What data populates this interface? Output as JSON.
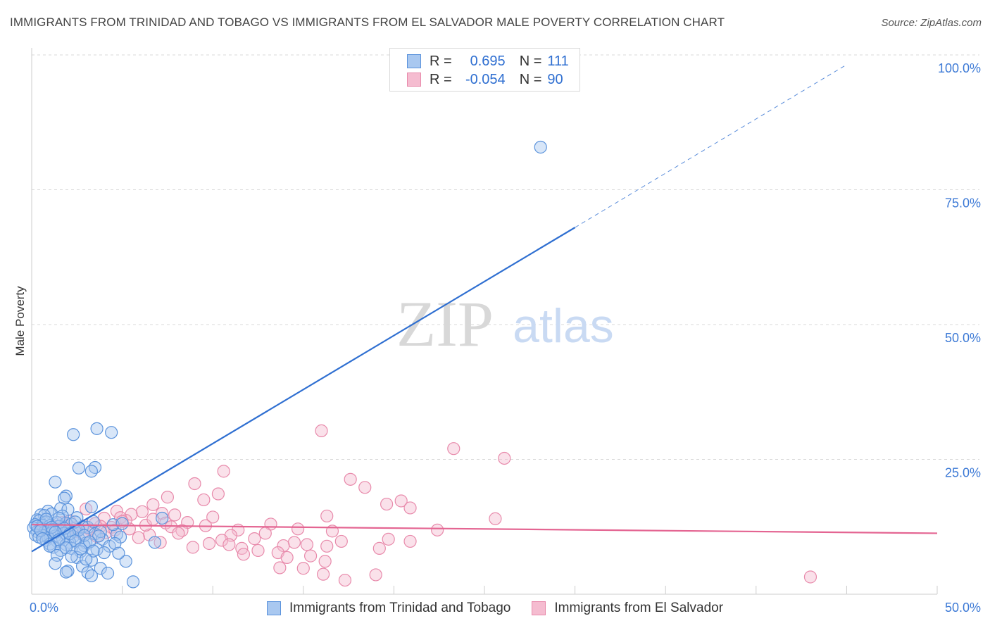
{
  "header": {
    "title": "IMMIGRANTS FROM TRINIDAD AND TOBAGO VS IMMIGRANTS FROM EL SALVADOR MALE POVERTY CORRELATION CHART",
    "source": "Source: ZipAtlas.com"
  },
  "watermark": {
    "zip": "ZIP",
    "atlas": "atlas"
  },
  "legend": {
    "r_label": "R =",
    "n_label": "N =",
    "series1": {
      "r": "0.695",
      "n": "111"
    },
    "series2": {
      "r": "-0.054",
      "n": "90"
    }
  },
  "colors": {
    "series1_fill": "#a9c8f0",
    "series1_stroke": "#5b93dc",
    "series1_line": "#2f6fd1",
    "series2_fill": "#f5bcd0",
    "series2_stroke": "#e88aab",
    "series2_line": "#e46592",
    "tick_label": "#3d7ad6",
    "grid": "#d9d9d9"
  },
  "chart_data": {
    "type": "scatter",
    "title": "IMMIGRANTS FROM TRINIDAD AND TOBAGO VS IMMIGRANTS FROM EL SALVADOR MALE POVERTY CORRELATION CHART",
    "xlabel": "",
    "ylabel": "Male Poverty",
    "xlim": [
      0,
      50
    ],
    "ylim": [
      0,
      100
    ],
    "x_tick_labels": [
      "0.0%",
      "50.0%"
    ],
    "y_ticks": [
      25,
      50,
      75,
      100
    ],
    "y_tick_labels": [
      "25.0%",
      "50.0%",
      "75.0%",
      "100.0%"
    ],
    "series": [
      {
        "name": "Immigrants from Trinidad and Tobago",
        "r": 0.695,
        "n": 111,
        "trend": {
          "x0": 0,
          "y0": 7.9,
          "x1": 30,
          "y1": 68.0,
          "dashed_to_x": 45,
          "dashed_to_y": 98.2
        },
        "points": [
          [
            28.1,
            82.9
          ],
          [
            3.6,
            30.7
          ],
          [
            4.4,
            30.0
          ],
          [
            2.3,
            29.6
          ],
          [
            2.6,
            23.4
          ],
          [
            3.5,
            23.5
          ],
          [
            3.3,
            22.8
          ],
          [
            1.3,
            20.8
          ],
          [
            1.9,
            18.2
          ],
          [
            1.8,
            17.8
          ],
          [
            3.3,
            16.2
          ],
          [
            1.6,
            15.9
          ],
          [
            2.0,
            15.7
          ],
          [
            0.9,
            15.4
          ],
          [
            1.1,
            14.9
          ],
          [
            0.5,
            14.7
          ],
          [
            0.7,
            14.6
          ],
          [
            1.7,
            14.5
          ],
          [
            2.5,
            14.2
          ],
          [
            7.2,
            14.1
          ],
          [
            0.3,
            13.8
          ],
          [
            0.4,
            13.6
          ],
          [
            0.8,
            13.4
          ],
          [
            1.4,
            13.3
          ],
          [
            1.9,
            13.2
          ],
          [
            2.2,
            13.0
          ],
          [
            0.2,
            12.9
          ],
          [
            0.6,
            12.8
          ],
          [
            1.0,
            12.7
          ],
          [
            1.5,
            12.6
          ],
          [
            2.8,
            12.5
          ],
          [
            3.1,
            12.4
          ],
          [
            0.1,
            12.3
          ],
          [
            0.5,
            12.2
          ],
          [
            0.9,
            12.1
          ],
          [
            1.2,
            12.0
          ],
          [
            1.6,
            11.9
          ],
          [
            2.0,
            11.8
          ],
          [
            2.4,
            11.7
          ],
          [
            0.3,
            11.6
          ],
          [
            0.7,
            11.5
          ],
          [
            1.1,
            11.4
          ],
          [
            1.8,
            11.3
          ],
          [
            3.5,
            11.2
          ],
          [
            4.7,
            11.1
          ],
          [
            0.2,
            11.0
          ],
          [
            0.6,
            10.9
          ],
          [
            1.3,
            10.8
          ],
          [
            2.3,
            10.7
          ],
          [
            0.4,
            10.6
          ],
          [
            0.9,
            10.5
          ],
          [
            1.7,
            10.4
          ],
          [
            2.6,
            10.3
          ],
          [
            3.9,
            10.2
          ],
          [
            0.8,
            10.0
          ],
          [
            1.4,
            9.8
          ],
          [
            2.1,
            9.6
          ],
          [
            3.0,
            9.5
          ],
          [
            1.0,
            9.3
          ],
          [
            1.9,
            9.2
          ],
          [
            2.9,
            9.0
          ],
          [
            4.3,
            8.9
          ],
          [
            1.2,
            8.7
          ],
          [
            2.2,
            8.5
          ],
          [
            3.6,
            8.3
          ],
          [
            1.6,
            8.1
          ],
          [
            2.7,
            7.9
          ],
          [
            4.0,
            7.7
          ],
          [
            1.4,
            7.2
          ],
          [
            2.5,
            6.8
          ],
          [
            3.3,
            6.3
          ],
          [
            5.2,
            6.1
          ],
          [
            1.3,
            5.7
          ],
          [
            2.8,
            5.2
          ],
          [
            3.8,
            4.8
          ],
          [
            2.0,
            4.3
          ],
          [
            3.1,
            4.0
          ],
          [
            4.2,
            3.9
          ],
          [
            3.3,
            3.4
          ],
          [
            5.6,
            2.3
          ],
          [
            1.9,
            4.1
          ],
          [
            0.8,
            13.9
          ],
          [
            1.5,
            14.1
          ],
          [
            2.4,
            13.4
          ],
          [
            3.4,
            13.5
          ],
          [
            4.5,
            12.9
          ],
          [
            5.0,
            13.1
          ],
          [
            0.3,
            12.6
          ],
          [
            1.1,
            12.4
          ],
          [
            1.8,
            12.2
          ],
          [
            2.6,
            11.9
          ],
          [
            3.8,
            11.6
          ],
          [
            0.5,
            11.8
          ],
          [
            1.3,
            11.5
          ],
          [
            2.1,
            11.2
          ],
          [
            2.9,
            10.9
          ],
          [
            3.7,
            10.8
          ],
          [
            4.9,
            10.6
          ],
          [
            0.6,
            10.3
          ],
          [
            1.5,
            10.1
          ],
          [
            2.4,
            9.9
          ],
          [
            3.2,
            9.7
          ],
          [
            4.6,
            9.4
          ],
          [
            1.0,
            8.9
          ],
          [
            1.9,
            8.6
          ],
          [
            2.7,
            8.4
          ],
          [
            3.4,
            8.0
          ],
          [
            4.8,
            7.6
          ],
          [
            2.2,
            7.0
          ],
          [
            3.0,
            6.5
          ],
          [
            6.8,
            9.6
          ]
        ]
      },
      {
        "name": "Immigrants from El Salvador",
        "r": -0.054,
        "n": 90,
        "trend": {
          "x0": 0,
          "y0": 12.9,
          "x1": 50,
          "y1": 11.3
        },
        "points": [
          [
            16.0,
            30.3
          ],
          [
            23.3,
            27.0
          ],
          [
            26.1,
            25.2
          ],
          [
            10.6,
            22.8
          ],
          [
            9.0,
            20.5
          ],
          [
            17.6,
            21.3
          ],
          [
            18.4,
            19.8
          ],
          [
            10.3,
            18.6
          ],
          [
            7.5,
            18.0
          ],
          [
            9.5,
            17.5
          ],
          [
            19.6,
            16.7
          ],
          [
            20.4,
            17.3
          ],
          [
            6.7,
            16.6
          ],
          [
            20.9,
            16.0
          ],
          [
            3.0,
            15.8
          ],
          [
            4.7,
            15.4
          ],
          [
            6.1,
            15.3
          ],
          [
            7.2,
            15.0
          ],
          [
            5.5,
            14.8
          ],
          [
            7.9,
            14.7
          ],
          [
            16.3,
            14.5
          ],
          [
            10.0,
            14.3
          ],
          [
            25.6,
            14.0
          ],
          [
            4.0,
            14.1
          ],
          [
            5.2,
            13.7
          ],
          [
            7.4,
            13.2
          ],
          [
            8.6,
            13.3
          ],
          [
            9.6,
            12.7
          ],
          [
            13.2,
            13.0
          ],
          [
            1.8,
            12.9
          ],
          [
            2.9,
            12.7
          ],
          [
            3.8,
            12.6
          ],
          [
            4.4,
            12.4
          ],
          [
            5.4,
            12.1
          ],
          [
            8.3,
            11.8
          ],
          [
            11.4,
            11.9
          ],
          [
            14.7,
            12.1
          ],
          [
            16.6,
            11.7
          ],
          [
            12.9,
            11.3
          ],
          [
            11.0,
            10.9
          ],
          [
            6.5,
            11.0
          ],
          [
            5.9,
            10.5
          ],
          [
            10.5,
            10.0
          ],
          [
            12.3,
            10.3
          ],
          [
            17.1,
            9.8
          ],
          [
            19.7,
            10.2
          ],
          [
            20.9,
            9.8
          ],
          [
            14.5,
            9.6
          ],
          [
            9.8,
            9.4
          ],
          [
            10.9,
            9.2
          ],
          [
            13.9,
            9.0
          ],
          [
            15.2,
            9.2
          ],
          [
            16.3,
            8.9
          ],
          [
            11.6,
            8.5
          ],
          [
            7.1,
            9.6
          ],
          [
            8.9,
            8.7
          ],
          [
            12.5,
            8.1
          ],
          [
            13.6,
            7.7
          ],
          [
            11.7,
            7.4
          ],
          [
            14.1,
            6.8
          ],
          [
            15.4,
            7.1
          ],
          [
            19.2,
            8.5
          ],
          [
            16.2,
            6.1
          ],
          [
            13.7,
            4.9
          ],
          [
            15.0,
            4.8
          ],
          [
            16.1,
            3.7
          ],
          [
            17.3,
            2.6
          ],
          [
            19.0,
            3.6
          ],
          [
            43.0,
            3.2
          ],
          [
            3.2,
            12.0
          ],
          [
            4.1,
            11.4
          ],
          [
            2.5,
            11.6
          ],
          [
            3.5,
            13.1
          ],
          [
            4.9,
            14.2
          ],
          [
            2.1,
            13.6
          ],
          [
            6.3,
            12.8
          ],
          [
            1.5,
            12.2
          ],
          [
            0.9,
            11.8
          ],
          [
            2.8,
            11.1
          ],
          [
            3.6,
            10.7
          ],
          [
            1.2,
            12.6
          ],
          [
            2.4,
            12.3
          ],
          [
            5.0,
            13.5
          ],
          [
            6.7,
            13.9
          ],
          [
            7.7,
            12.5
          ],
          [
            8.1,
            11.3
          ],
          [
            1.7,
            13.3
          ],
          [
            4.6,
            11.9
          ],
          [
            0.6,
            12.7
          ],
          [
            22.4,
            11.9
          ]
        ]
      }
    ]
  },
  "bottom_legend": {
    "series1_label": "Immigrants from Trinidad and Tobago",
    "series2_label": "Immigrants from El Salvador"
  }
}
